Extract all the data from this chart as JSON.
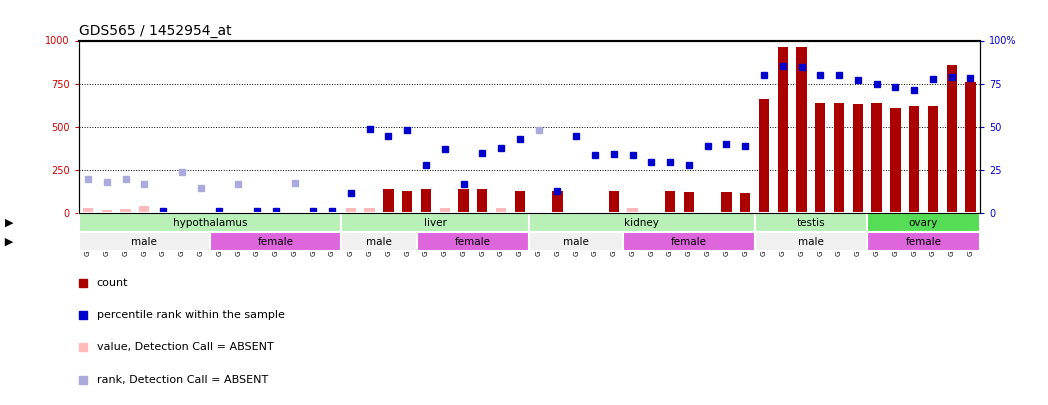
{
  "title": "GDS565 / 1452954_at",
  "samples": [
    "GSM19215",
    "GSM19216",
    "GSM19217",
    "GSM19218",
    "GSM19219",
    "GSM19220",
    "GSM19221",
    "GSM19222",
    "GSM19223",
    "GSM19224",
    "GSM19225",
    "GSM19226",
    "GSM19227",
    "GSM19228",
    "GSM19229",
    "GSM19230",
    "GSM19231",
    "GSM19232",
    "GSM19233",
    "GSM19234",
    "GSM19235",
    "GSM19236",
    "GSM19237",
    "GSM19238",
    "GSM19239",
    "GSM19240",
    "GSM19241",
    "GSM19242",
    "GSM19243",
    "GSM19244",
    "GSM19245",
    "GSM19246",
    "GSM19247",
    "GSM19248",
    "GSM19249",
    "GSM19250",
    "GSM19251",
    "GSM19252",
    "GSM19253",
    "GSM19254",
    "GSM19255",
    "GSM19256",
    "GSM19257",
    "GSM19258",
    "GSM19259",
    "GSM19260",
    "GSM19261",
    "GSM19262"
  ],
  "count_values": [
    30,
    20,
    25,
    40,
    5,
    5,
    5,
    5,
    5,
    5,
    5,
    5,
    5,
    5,
    30,
    30,
    140,
    130,
    140,
    30,
    140,
    140,
    30,
    130,
    5,
    130,
    5,
    5,
    130,
    30,
    5,
    130,
    125,
    5,
    125,
    120,
    660,
    960,
    960,
    640,
    640,
    635,
    640,
    610,
    620,
    620,
    860,
    760
  ],
  "rank_values": [
    200,
    180,
    200,
    170,
    15,
    240,
    145,
    15,
    170,
    15,
    15,
    175,
    15,
    15,
    120,
    490,
    445,
    485,
    280,
    375,
    170,
    350,
    380,
    430,
    480,
    130,
    450,
    340,
    345,
    340,
    300,
    295,
    280,
    390,
    400,
    390,
    800,
    855,
    845,
    800,
    800,
    770,
    750,
    730,
    715,
    775,
    790,
    785
  ],
  "count_absent": [
    true,
    true,
    true,
    true,
    true,
    true,
    true,
    true,
    true,
    true,
    true,
    true,
    true,
    true,
    true,
    true,
    false,
    false,
    false,
    true,
    false,
    false,
    true,
    false,
    true,
    false,
    true,
    true,
    false,
    true,
    true,
    false,
    false,
    true,
    false,
    false,
    false,
    false,
    false,
    false,
    false,
    false,
    false,
    false,
    false,
    false,
    false,
    false
  ],
  "rank_absent": [
    true,
    true,
    true,
    true,
    false,
    true,
    true,
    false,
    true,
    false,
    false,
    true,
    false,
    false,
    false,
    false,
    false,
    false,
    false,
    false,
    false,
    false,
    false,
    false,
    true,
    false,
    false,
    false,
    false,
    false,
    false,
    false,
    false,
    false,
    false,
    false,
    false,
    false,
    false,
    false,
    false,
    false,
    false,
    false,
    false,
    false,
    false,
    false
  ],
  "tissues": [
    {
      "label": "hypothalamus",
      "start": 0,
      "end": 13,
      "color": "#b8f0b8"
    },
    {
      "label": "liver",
      "start": 14,
      "end": 23,
      "color": "#b8f0b8"
    },
    {
      "label": "kidney",
      "start": 24,
      "end": 35,
      "color": "#b8f0b8"
    },
    {
      "label": "testis",
      "start": 36,
      "end": 41,
      "color": "#b8f0b8"
    },
    {
      "label": "ovary",
      "start": 42,
      "end": 47,
      "color": "#55dd55"
    }
  ],
  "genders": [
    {
      "label": "male",
      "start": 0,
      "end": 6,
      "color": "#f0f0f0"
    },
    {
      "label": "female",
      "start": 7,
      "end": 13,
      "color": "#dd66dd"
    },
    {
      "label": "male",
      "start": 14,
      "end": 17,
      "color": "#f0f0f0"
    },
    {
      "label": "female",
      "start": 18,
      "end": 23,
      "color": "#dd66dd"
    },
    {
      "label": "male",
      "start": 24,
      "end": 28,
      "color": "#f0f0f0"
    },
    {
      "label": "female",
      "start": 29,
      "end": 35,
      "color": "#dd66dd"
    },
    {
      "label": "male",
      "start": 36,
      "end": 41,
      "color": "#f0f0f0"
    },
    {
      "label": "female",
      "start": 42,
      "end": 47,
      "color": "#dd66dd"
    }
  ],
  "ylim_left": [
    0,
    1000
  ],
  "ylim_right": [
    0,
    100
  ],
  "yticks_left": [
    0,
    250,
    500,
    750,
    1000
  ],
  "yticks_right": [
    0,
    25,
    50,
    75,
    100
  ],
  "color_count_present": "#aa0000",
  "color_count_absent": "#ffbbbb",
  "color_rank_present": "#0000cc",
  "color_rank_absent": "#aaaadd",
  "bg_color": "#ffffff",
  "title_fontsize": 10,
  "tick_fontsize": 7,
  "sample_fontsize": 5.2
}
